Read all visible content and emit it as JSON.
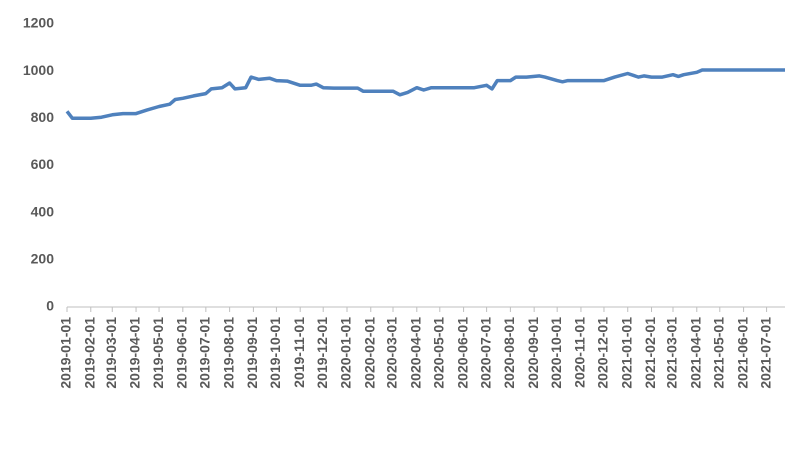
{
  "chart_data": {
    "type": "line",
    "x": [
      "2019-01-01",
      "2019-01-08",
      "2019-01-15",
      "2019-02-01",
      "2019-02-15",
      "2019-03-01",
      "2019-03-15",
      "2019-04-01",
      "2019-04-15",
      "2019-05-01",
      "2019-05-15",
      "2019-05-22",
      "2019-06-01",
      "2019-06-15",
      "2019-07-01",
      "2019-07-08",
      "2019-07-22",
      "2019-08-01",
      "2019-08-08",
      "2019-08-22",
      "2019-08-29",
      "2019-09-08",
      "2019-09-22",
      "2019-10-01",
      "2019-10-15",
      "2019-11-01",
      "2019-11-15",
      "2019-11-22",
      "2019-12-01",
      "2019-12-15",
      "2020-01-01",
      "2020-01-15",
      "2020-01-22",
      "2020-02-01",
      "2020-02-15",
      "2020-03-01",
      "2020-03-10",
      "2020-03-20",
      "2020-04-01",
      "2020-04-10",
      "2020-04-20",
      "2020-05-01",
      "2020-05-15",
      "2020-06-01",
      "2020-06-15",
      "2020-07-01",
      "2020-07-08",
      "2020-07-15",
      "2020-08-01",
      "2020-08-08",
      "2020-08-22",
      "2020-09-08",
      "2020-09-15",
      "2020-10-01",
      "2020-10-08",
      "2020-10-15",
      "2020-11-01",
      "2020-11-15",
      "2020-12-01",
      "2020-12-15",
      "2021-01-01",
      "2021-01-15",
      "2021-01-22",
      "2021-02-01",
      "2021-02-15",
      "2021-03-01",
      "2021-03-08",
      "2021-03-15",
      "2021-04-01",
      "2021-04-08",
      "2021-05-01",
      "2021-06-01",
      "2021-07-01",
      "2021-07-25"
    ],
    "series": [
      {
        "color": "#4f81bd",
        "values": [
          830,
          800,
          800,
          800,
          805,
          815,
          820,
          820,
          835,
          850,
          860,
          880,
          885,
          895,
          905,
          925,
          930,
          950,
          925,
          930,
          975,
          965,
          970,
          960,
          958,
          940,
          940,
          945,
          930,
          928,
          928,
          928,
          915,
          915,
          915,
          915,
          900,
          910,
          930,
          920,
          930,
          930,
          930,
          930,
          930,
          940,
          925,
          960,
          960,
          975,
          975,
          980,
          975,
          960,
          955,
          960,
          960,
          960,
          960,
          975,
          990,
          975,
          980,
          975,
          975,
          985,
          978,
          985,
          995,
          1005,
          1005,
          1005,
          1005,
          1005
        ]
      }
    ],
    "xlim": [
      "2019-01-01",
      "2021-07-25"
    ],
    "xticks": [
      "2019-01-01",
      "2019-02-01",
      "2019-03-01",
      "2019-04-01",
      "2019-05-01",
      "2019-06-01",
      "2019-07-01",
      "2019-08-01",
      "2019-09-01",
      "2019-10-01",
      "2019-11-01",
      "2019-12-01",
      "2020-01-01",
      "2020-02-01",
      "2020-03-01",
      "2020-04-01",
      "2020-05-01",
      "2020-06-01",
      "2020-07-01",
      "2020-08-01",
      "2020-09-01",
      "2020-10-01",
      "2020-11-01",
      "2020-12-01",
      "2021-01-01",
      "2021-02-01",
      "2021-03-01",
      "2021-04-01",
      "2021-05-01",
      "2021-06-01",
      "2021-07-01"
    ],
    "ylim": [
      0,
      1200
    ],
    "yticks": [
      0,
      200,
      400,
      600,
      800,
      1000,
      1200
    ]
  }
}
